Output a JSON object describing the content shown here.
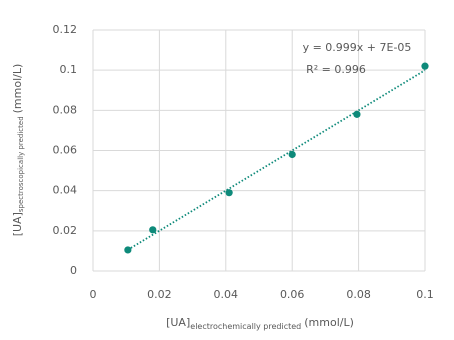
{
  "chart_data": {
    "type": "scatter",
    "x_label": {
      "main": "[UA]",
      "sub": "electrochemically predicted",
      "unit": "(mmol/L)"
    },
    "y_label": {
      "main": "[UA]",
      "sub": "spectroscopically predicted",
      "unit": "(mmol/L)"
    },
    "series": [
      {
        "color": "#0e8a7a",
        "x": [
          0.0105,
          0.018,
          0.041,
          0.06,
          0.0795,
          0.1
        ],
        "values": [
          0.0105,
          0.0205,
          0.039,
          0.058,
          0.078,
          0.102
        ]
      }
    ],
    "trendline": {
      "slope": 0.999,
      "intercept": 7e-05,
      "equation": "y = 0.999x + 7E-05",
      "r_squared": "R² = 0.996"
    },
    "xlim": [
      0,
      0.1
    ],
    "xticks": [
      0,
      0.02,
      0.04,
      0.06,
      0.08,
      0.1
    ],
    "ylim": [
      0,
      0.12
    ],
    "yticks": [
      0,
      0.02,
      0.04,
      0.06,
      0.08,
      0.1,
      0.12
    ],
    "grid": true
  }
}
